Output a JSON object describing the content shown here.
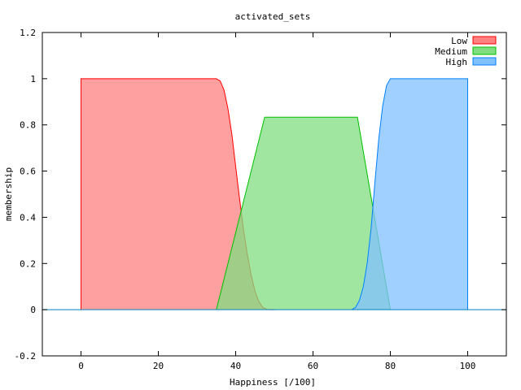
{
  "chart_data": {
    "type": "area",
    "title": "activated_sets",
    "xlabel": "Happiness [/100]",
    "ylabel": "membership",
    "xlim": [
      -10,
      110
    ],
    "ylim": [
      -0.2,
      1.2
    ],
    "xticks": [
      0,
      20,
      40,
      60,
      80,
      100
    ],
    "yticks": [
      -0.2,
      0,
      0.2,
      0.4,
      0.6,
      0.8,
      1,
      1.2
    ],
    "xtick_labels": [
      "0",
      "20",
      "40",
      "60",
      "80",
      "100"
    ],
    "ytick_labels": [
      "-0.2",
      "0",
      "0.2",
      "0.4",
      "0.6",
      "0.8",
      "1",
      "1.2"
    ],
    "grid": false,
    "legend_position": "top-right",
    "series": [
      {
        "name": "Low",
        "color": "#ff0000",
        "fill": "#ff8080",
        "x": [
          0,
          0,
          35,
          36,
          37,
          38,
          39,
          40,
          41,
          42,
          43,
          44,
          45,
          46,
          47,
          48,
          49,
          50
        ],
        "y": [
          0,
          1,
          1,
          0.99,
          0.95,
          0.87,
          0.76,
          0.62,
          0.48,
          0.35,
          0.24,
          0.15,
          0.08,
          0.035,
          0.01,
          0.002,
          0,
          0
        ]
      },
      {
        "name": "Medium",
        "color": "#00c000",
        "fill": "#80dd80",
        "x": [
          35,
          47.5,
          71.5,
          80
        ],
        "y": [
          0,
          0.833,
          0.833,
          0
        ]
      },
      {
        "name": "High",
        "color": "#0080ff",
        "fill": "#80c0ff",
        "x": [
          70,
          71,
          72,
          73,
          74,
          75,
          76,
          77,
          78,
          79,
          80,
          100,
          100
        ],
        "y": [
          0,
          0.01,
          0.04,
          0.1,
          0.2,
          0.35,
          0.55,
          0.74,
          0.88,
          0.97,
          1,
          1,
          0
        ]
      }
    ]
  }
}
